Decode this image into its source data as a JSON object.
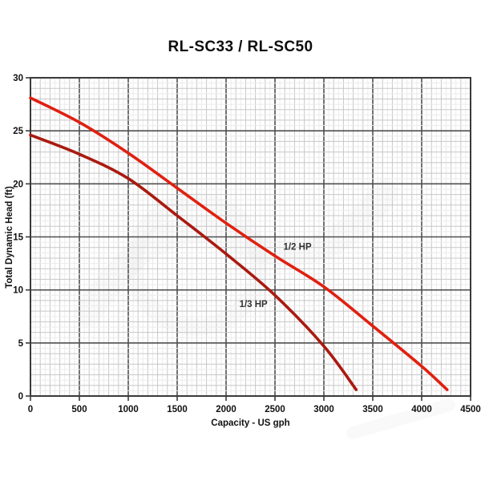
{
  "title": "RL-SC33 / RL-SC50",
  "chart_data": {
    "type": "line",
    "title": "RL-SC33 / RL-SC50",
    "xlabel": "Capacity - US gph",
    "ylabel": "Total Dynamic Head (ft)",
    "xlim": [
      0,
      4500
    ],
    "ylim": [
      0,
      30
    ],
    "x_ticks": [
      0,
      500,
      1000,
      1500,
      2000,
      2500,
      3000,
      3500,
      4000,
      4500
    ],
    "y_ticks": [
      0,
      5,
      10,
      15,
      20,
      25,
      30
    ],
    "grid": {
      "major_x": 500,
      "major_y": 5,
      "minor_x": 100,
      "minor_y": 1,
      "subminor_x": 50,
      "subminor_y": 0.5
    },
    "legend_position": "inline-labels",
    "series": [
      {
        "name": "1/2 HP",
        "label": "1/2 HP",
        "color": "#e02010",
        "label_anchor": {
          "x": 2730,
          "y": 14.1
        },
        "points": [
          [
            0,
            28.1
          ],
          [
            500,
            25.8
          ],
          [
            1000,
            22.9
          ],
          [
            1500,
            19.6
          ],
          [
            2000,
            16.3
          ],
          [
            2500,
            13.2
          ],
          [
            3000,
            10.3
          ],
          [
            3500,
            6.6
          ],
          [
            4000,
            2.8
          ],
          [
            4260,
            0.6
          ]
        ]
      },
      {
        "name": "1/3 HP",
        "label": "1/3 HP",
        "color": "#aa1a10",
        "label_anchor": {
          "x": 2280,
          "y": 8.7
        },
        "points": [
          [
            0,
            24.6
          ],
          [
            500,
            22.8
          ],
          [
            1000,
            20.5
          ],
          [
            1500,
            17.0
          ],
          [
            2000,
            13.4
          ],
          [
            2500,
            9.5
          ],
          [
            3000,
            4.7
          ],
          [
            3330,
            0.6
          ]
        ]
      }
    ],
    "styles": {
      "frame_color": "#3a3a3a",
      "major_grid_color": "#4f4f4f",
      "minor_grid_color": "#c7c7c7",
      "subminor_grid_color": "#ebebeb",
      "tick_text_color": "#111111",
      "series_label_color": "#333333",
      "background": "#ffffff"
    }
  }
}
